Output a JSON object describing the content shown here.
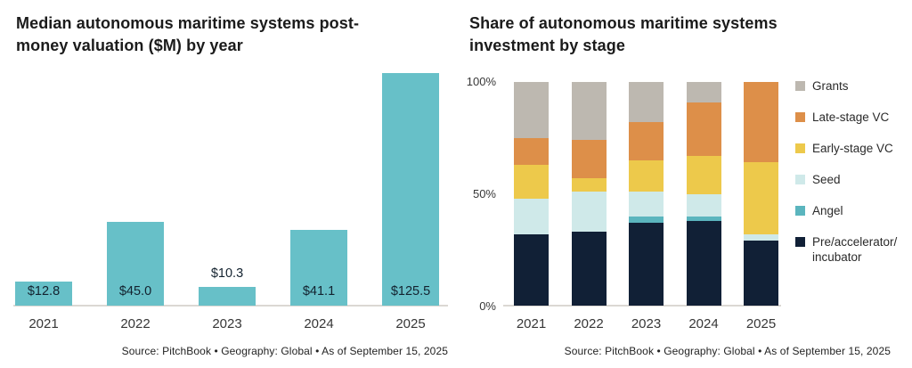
{
  "colors": {
    "valuation_bar": "#67c0c8",
    "grants": "#bdb8b0",
    "late_stage_vc": "#dd8f49",
    "early_stage_vc": "#edc94b",
    "seed": "#cfe9e9",
    "angel": "#5bb5be",
    "pre_accelerator_incubator": "#112036",
    "baseline": "#dbd8d3",
    "title_text": "#1b1b1b",
    "axis_text": "#373737"
  },
  "left_chart": {
    "title": "Median autonomous maritime systems post-money valuation ($M) by year",
    "title_lines": [
      "Median autonomous maritime systems post-",
      "money valuation ($M) by year"
    ],
    "source": "Source: PitchBook • Geography: Global • As of September 15, 2025"
  },
  "right_chart": {
    "title": "Share of autonomous maritime systems investment by stage",
    "title_lines": [
      "Share of autonomous maritime systems",
      "investment by stage"
    ],
    "y_ticks": [
      "100%",
      "50%",
      "0%"
    ],
    "source": "Source: PitchBook • Geography: Global • As of September 15, 2025"
  },
  "chart_data": [
    {
      "type": "bar",
      "title": "Median autonomous maritime systems post-money valuation ($M) by year",
      "categories": [
        "2021",
        "2022",
        "2023",
        "2024",
        "2025"
      ],
      "values": [
        12.8,
        45.0,
        10.3,
        41.1,
        125.5
      ],
      "labels": [
        "$12.8",
        "$45.0",
        "$10.3",
        "$41.1",
        "$125.5"
      ],
      "xlabel": "",
      "ylabel": "Post-money valuation ($M)",
      "ylim": [
        0,
        125.5
      ],
      "grid": false,
      "bar_color": "#67c0c8"
    },
    {
      "type": "stacked-bar-100",
      "title": "Share of autonomous maritime systems investment by stage",
      "categories": [
        "2021",
        "2022",
        "2023",
        "2024",
        "2025"
      ],
      "ylim": [
        0,
        100
      ],
      "y_ticks": [
        "100%",
        "50%",
        "0%"
      ],
      "grid": false,
      "legend_position": "right",
      "series": [
        {
          "name": "Pre/accelerator/incubator",
          "legend_lines": [
            "Pre/accelerator/",
            "incubator"
          ],
          "color": "#112036",
          "values": [
            32,
            33,
            37,
            38,
            29
          ]
        },
        {
          "name": "Angel",
          "legend_lines": [
            "Angel"
          ],
          "color": "#5bb5be",
          "values": [
            0,
            0,
            3,
            2,
            0
          ]
        },
        {
          "name": "Seed",
          "legend_lines": [
            "Seed"
          ],
          "color": "#cfe9e9",
          "values": [
            16,
            18,
            11,
            10,
            3
          ]
        },
        {
          "name": "Early-stage VC",
          "legend_lines": [
            "Early-stage VC"
          ],
          "color": "#edc94b",
          "values": [
            15,
            6,
            14,
            17,
            32
          ]
        },
        {
          "name": "Late-stage VC",
          "legend_lines": [
            "Late-stage VC"
          ],
          "color": "#dd8f49",
          "values": [
            12,
            17,
            17,
            24,
            36
          ]
        },
        {
          "name": "Grants",
          "legend_lines": [
            "Grants"
          ],
          "color": "#bdb8b0",
          "values": [
            25,
            26,
            18,
            9,
            0
          ]
        }
      ]
    }
  ]
}
